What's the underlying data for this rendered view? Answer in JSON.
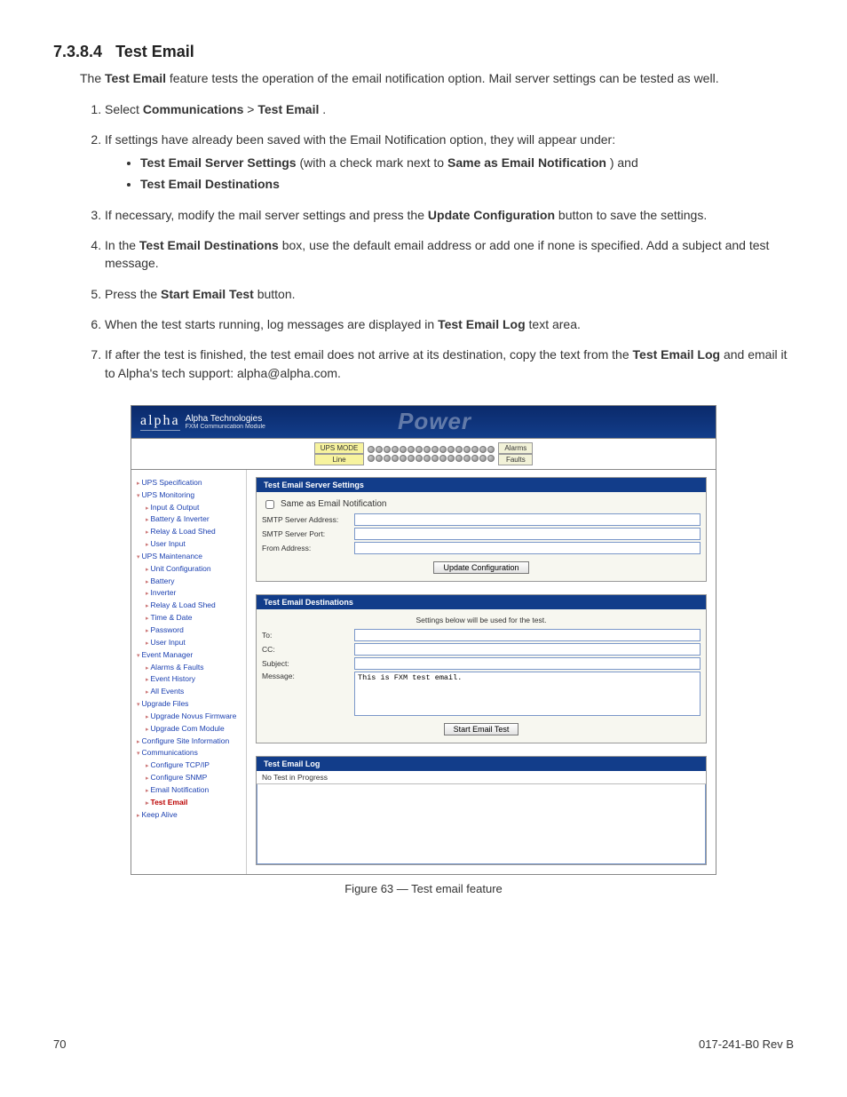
{
  "section": {
    "number": "7.3.8.4",
    "title": "Test Email"
  },
  "intro": {
    "prefix": "The ",
    "bold": "Test Email",
    "rest": " feature tests the operation of the email notification option. Mail server settings can be tested as well."
  },
  "steps": {
    "s1": {
      "a": "Select ",
      "b1": "Communications",
      "gt": " > ",
      "b2": "Test Email",
      "end": "."
    },
    "s2": {
      "text": "If settings have already been saved with the Email Notification option, they will appear under:",
      "bul1a": "Test Email Server Settings",
      "bul1b": " (with a check mark next to ",
      "bul1c": "Same as Email Notification",
      "bul1d": ") and",
      "bul2": "Test Email Destinations"
    },
    "s3": {
      "a": "If necessary, modify the mail server settings and press the ",
      "b": "Update Configuration",
      "c": " button to save the settings."
    },
    "s4": {
      "a": "In the ",
      "b": "Test Email Destinations",
      "c": " box, use the default email address or add one if none is specified. Add a subject and test message."
    },
    "s5": {
      "a": "Press the ",
      "b": "Start Email Test",
      "c": " button."
    },
    "s6": {
      "a": "When the test starts running, log messages are displayed in ",
      "b": "Test Email Log",
      "c": " text area."
    },
    "s7": {
      "a": "If after the test is finished, the test email does not arrive at its destination, copy the text from the  ",
      "b": "Test Email Log",
      "c": " and email it to Alpha's tech support: alpha@alpha.com."
    }
  },
  "app": {
    "brand": "alpha",
    "brand_sub": "Alpha Technologies",
    "brand_sub2": "FXM Communication Module",
    "power": "Power",
    "status": {
      "mode_label": "UPS MODE",
      "mode_value": "Line",
      "alarms": "Alarms",
      "faults": "Faults"
    },
    "sidebar": [
      {
        "t": "UPS Specification",
        "lvl": 1
      },
      {
        "t": "UPS Monitoring",
        "lvl": 1,
        "open": true
      },
      {
        "t": "Input & Output",
        "lvl": 2
      },
      {
        "t": "Battery & Inverter",
        "lvl": 2
      },
      {
        "t": "Relay & Load Shed",
        "lvl": 2
      },
      {
        "t": "User Input",
        "lvl": 2
      },
      {
        "t": "UPS Maintenance",
        "lvl": 1,
        "open": true
      },
      {
        "t": "Unit Configuration",
        "lvl": 2
      },
      {
        "t": "Battery",
        "lvl": 2
      },
      {
        "t": "Inverter",
        "lvl": 2
      },
      {
        "t": "Relay & Load Shed",
        "lvl": 2
      },
      {
        "t": "Time & Date",
        "lvl": 2
      },
      {
        "t": "Password",
        "lvl": 2
      },
      {
        "t": "User Input",
        "lvl": 2
      },
      {
        "t": "Event Manager",
        "lvl": 1,
        "open": true
      },
      {
        "t": "Alarms & Faults",
        "lvl": 2
      },
      {
        "t": "Event History",
        "lvl": 2
      },
      {
        "t": "All Events",
        "lvl": 2
      },
      {
        "t": "Upgrade Files",
        "lvl": 1,
        "open": true
      },
      {
        "t": "Upgrade Novus Firmware",
        "lvl": 2
      },
      {
        "t": "Upgrade Com Module",
        "lvl": 2
      },
      {
        "t": "Configure Site Information",
        "lvl": 1
      },
      {
        "t": "Communications",
        "lvl": 1,
        "open": true
      },
      {
        "t": "Configure TCP/IP",
        "lvl": 2
      },
      {
        "t": "Configure SNMP",
        "lvl": 2
      },
      {
        "t": "Email Notification",
        "lvl": 2
      },
      {
        "t": "Test Email",
        "lvl": 2,
        "sel": true
      },
      {
        "t": "Keep Alive",
        "lvl": 1
      }
    ],
    "panel1": {
      "title": "Test Email Server Settings",
      "same_as": "Same as Email Notification",
      "smtp_addr": "SMTP Server Address:",
      "smtp_port": "SMTP Server Port:",
      "from": "From Address:",
      "update_btn": "Update Configuration"
    },
    "panel2": {
      "title": "Test Email Destinations",
      "hint": "Settings below will be used for the test.",
      "to": "To:",
      "cc": "CC:",
      "subject": "Subject:",
      "message": "Message:",
      "msg_value": "This is FXM test email.",
      "start_btn": "Start Email Test"
    },
    "panel3": {
      "title": "Test Email Log",
      "status": "No Test in Progress"
    }
  },
  "caption": "Figure 63  —  Test email feature",
  "footer": {
    "page": "70",
    "doc": "017-241-B0    Rev B"
  }
}
